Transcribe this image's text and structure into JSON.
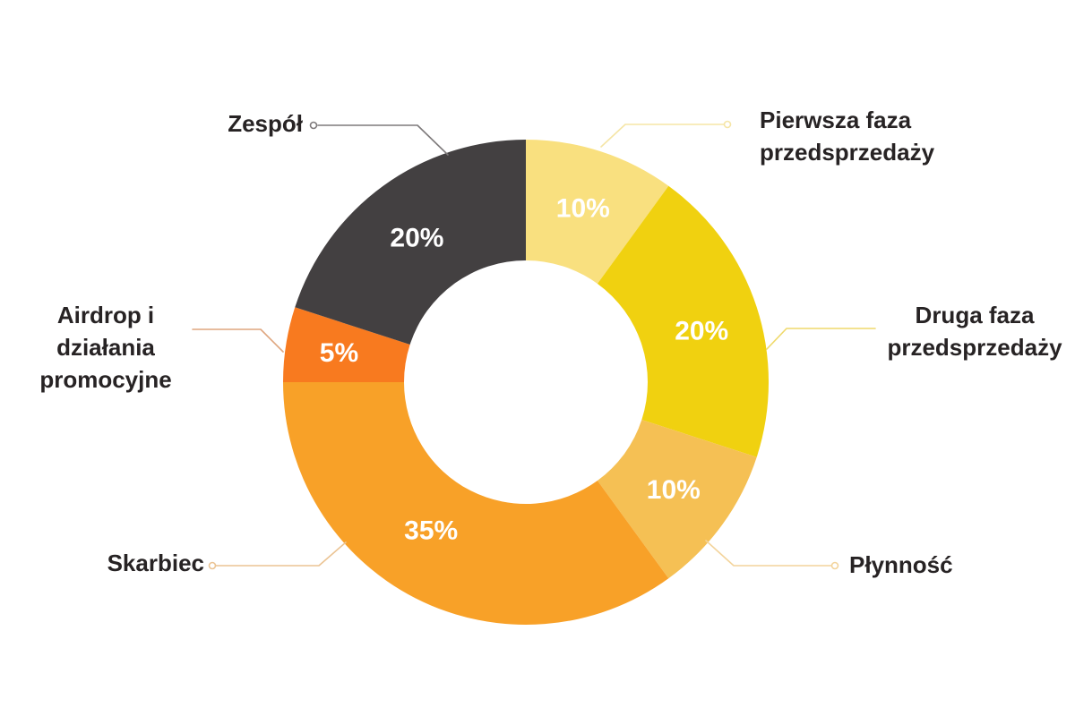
{
  "page": {
    "background_color": "#FFFFFF"
  },
  "chart_data": {
    "type": "donut",
    "unit": "%",
    "total": 100,
    "legend_position": "callout-labels",
    "grid": false,
    "percent_text_color": "#FFFFFF",
    "label_text_color": "#272324",
    "slices": [
      {
        "label": "Pierwsza faza przedsprzedaży",
        "label_lines": [
          "Pierwsza faza",
          "przedsprzedaży"
        ],
        "value": 10,
        "display": "10%",
        "color": "#F9E07F",
        "connector_color": "#F5E5A6"
      },
      {
        "label": "Druga faza przedsprzedaży",
        "label_lines": [
          "Druga faza",
          "przedsprzedaży"
        ],
        "value": 20,
        "display": "20%",
        "color": "#F0D110",
        "connector_color": "#EFD96B"
      },
      {
        "label": "Płynność",
        "label_lines": [
          "Płynność"
        ],
        "value": 10,
        "display": "10%",
        "color": "#F5C054",
        "connector_color": "#F3D49C"
      },
      {
        "label": "Skarbiec",
        "label_lines": [
          "Skarbiec"
        ],
        "value": 35,
        "display": "35%",
        "color": "#F8A128",
        "connector_color": "#EBC494"
      },
      {
        "label": "Airdrop i działania promocyjne",
        "label_lines": [
          "Airdrop i",
          "działania",
          "promocyjne"
        ],
        "value": 5,
        "display": "5%",
        "color": "#F87A1F",
        "connector_color": "#DFA67F"
      },
      {
        "label": "Zespół",
        "label_lines": [
          "Zespół"
        ],
        "value": 20,
        "display": "20%",
        "color": "#434041",
        "connector_color": "#7E7A7B"
      }
    ]
  }
}
